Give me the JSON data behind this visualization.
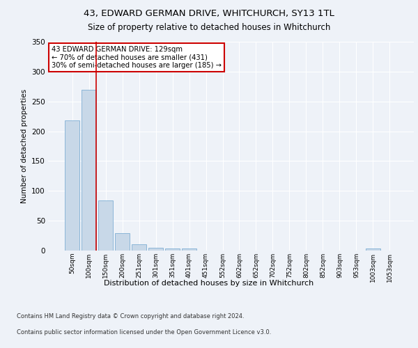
{
  "title_line1": "43, EDWARD GERMAN DRIVE, WHITCHURCH, SY13 1TL",
  "title_line2": "Size of property relative to detached houses in Whitchurch",
  "xlabel": "Distribution of detached houses by size in Whitchurch",
  "ylabel": "Number of detached properties",
  "categories": [
    "50sqm",
    "100sqm",
    "150sqm",
    "200sqm",
    "251sqm",
    "301sqm",
    "351sqm",
    "401sqm",
    "451sqm",
    "552sqm",
    "602sqm",
    "652sqm",
    "702sqm",
    "752sqm",
    "802sqm",
    "852sqm",
    "903sqm",
    "953sqm",
    "1003sqm",
    "1053sqm"
  ],
  "values": [
    218,
    270,
    84,
    29,
    11,
    5,
    4,
    4,
    0,
    0,
    0,
    0,
    0,
    0,
    0,
    0,
    0,
    0,
    3,
    0
  ],
  "bar_color": "#c8d8e8",
  "bar_edgecolor": "#7fafd4",
  "annotation_line1": "43 EDWARD GERMAN DRIVE: 129sqm",
  "annotation_line2": "← 70% of detached houses are smaller (431)",
  "annotation_line3": "30% of semi-detached houses are larger (185) →",
  "annotation_box_color": "#ffffff",
  "annotation_box_edgecolor": "#cc0000",
  "red_line_color": "#cc0000",
  "ylim": [
    0,
    350
  ],
  "yticks": [
    0,
    50,
    100,
    150,
    200,
    250,
    300,
    350
  ],
  "footnote1": "Contains HM Land Registry data © Crown copyright and database right 2024.",
  "footnote2": "Contains public sector information licensed under the Open Government Licence v3.0.",
  "background_color": "#eef2f8",
  "plot_background": "#eef2f8",
  "grid_color": "#ffffff"
}
